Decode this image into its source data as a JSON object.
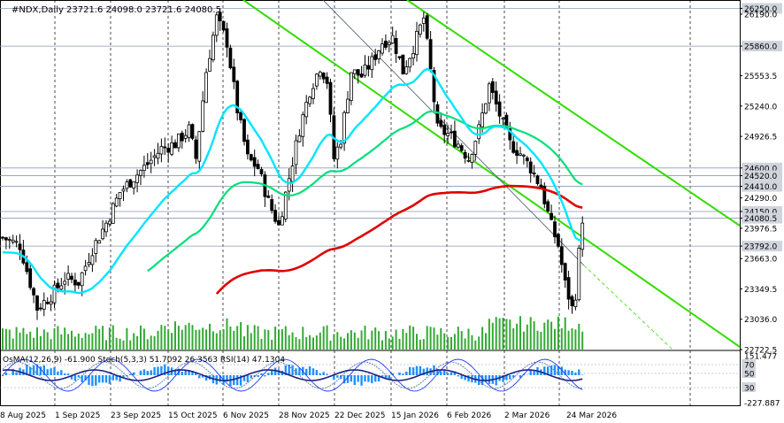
{
  "chart_data": {
    "type": "candlestick",
    "symbol_label": "#NDX,Daily",
    "ohlc_label": "23721.6 24098.0 23721.6 24080.5",
    "ylim": [
      22722.5,
      26300
    ],
    "price_ticks": [
      "26250.0",
      "26190.0",
      "25860.0",
      "25553.5",
      "25240.0",
      "24926.5",
      "24600.0",
      "24520.0",
      "24410.0",
      "24290.0",
      "24150.0",
      "24080.5",
      "23976.5",
      "23792.0",
      "23663.0",
      "23349.5",
      "23036.0",
      "22722.5"
    ],
    "highlight_levels": [
      {
        "label": "26250.0",
        "value": 26250
      },
      {
        "label": "25860.0",
        "value": 25860
      },
      {
        "label": "24600.0",
        "value": 24600
      },
      {
        "label": "24520.0",
        "value": 24520
      },
      {
        "label": "24410.0",
        "value": 24410
      },
      {
        "label": "24150.0",
        "value": 24150
      },
      {
        "label": "24080.5",
        "value": 24080.5
      },
      {
        "label": "23792.0",
        "value": 23792
      }
    ],
    "x_labels": [
      "8 Aug 2025",
      "1 Sep 2025",
      "23 Sep 2025",
      "15 Oct 2025",
      "6 Nov 2025",
      "28 Nov 2025",
      "22 Dec 2025",
      "15 Jan 2026",
      "6 Feb 2026",
      "2 Mar 2026",
      "24 Mar 2026"
    ],
    "osc_label": "OsMA(12,26,9) -61.900 Stoch(5,3,3) 51.7092 26.3563 RSI(14) 47.1304",
    "osc_ticks": [
      "151.477",
      "70",
      "50",
      "30",
      "-227.887"
    ],
    "osc_ylim": [
      -227.887,
      151.477
    ],
    "colors": {
      "up": "#000000",
      "down": "#000000",
      "ema50": "#00e5ff",
      "ema144": "#00e07a",
      "ema200": "#e00000",
      "channel": "#33dd00",
      "volume": "#33aa33",
      "osma": "#1e90ff",
      "stoch_main": "#000080",
      "stoch_signal": "#1e3cff",
      "rsi": "#202080"
    }
  }
}
